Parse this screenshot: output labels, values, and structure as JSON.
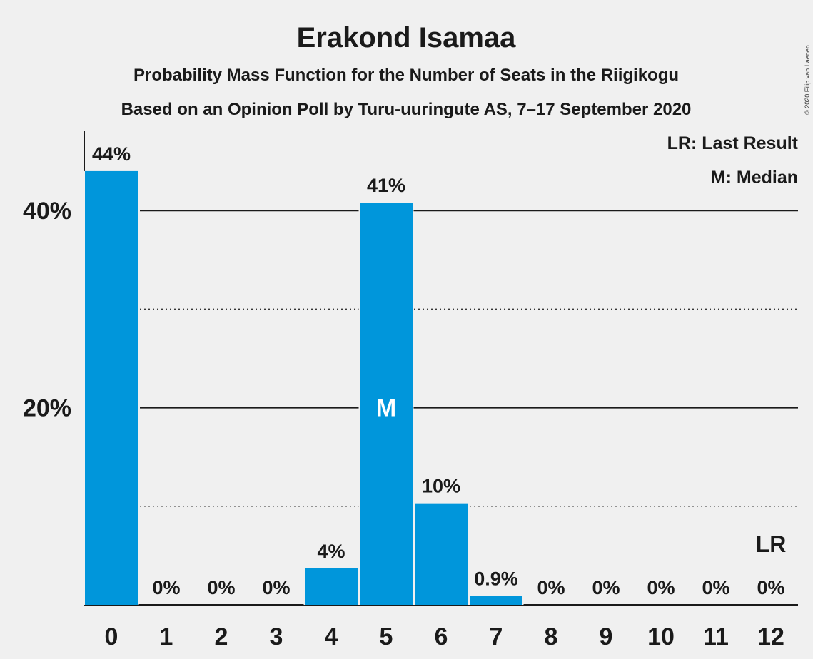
{
  "chart_data": {
    "type": "bar",
    "title": "Erakond Isamaa",
    "subtitle": "Probability Mass Function for the Number of Seats in the Riigikogu",
    "subtitle2": "Based on an Opinion Poll by Turu-uuringute AS, 7–17 September 2020",
    "copyright": "© 2020 Filip van Laenen",
    "legend": {
      "position": "top-right",
      "items": [
        "LR: Last Result",
        "M: Median"
      ]
    },
    "categories": [
      "0",
      "1",
      "2",
      "3",
      "4",
      "5",
      "6",
      "7",
      "8",
      "9",
      "10",
      "11",
      "12"
    ],
    "values": [
      44,
      0,
      0,
      0,
      3.7,
      40.8,
      10.3,
      0.9,
      0,
      0,
      0,
      0,
      0
    ],
    "data_labels": [
      "44%",
      "0%",
      "0%",
      "0%",
      "4%",
      "41%",
      "10%",
      "0.9%",
      "0%",
      "0%",
      "0%",
      "0%",
      "0%"
    ],
    "y_ticks": [
      {
        "value": 20,
        "label": "20%"
      },
      {
        "value": 40,
        "label": "40%"
      }
    ],
    "minor_gridlines": [
      10,
      30
    ],
    "ylim": [
      0,
      47.5
    ],
    "median": {
      "category": "5",
      "marker": "M"
    },
    "last_result": {
      "category": "12",
      "marker": "LR"
    },
    "colors": {
      "bar": "#0096db",
      "background": "#f0f0f0",
      "text": "#1a1a1a"
    }
  }
}
